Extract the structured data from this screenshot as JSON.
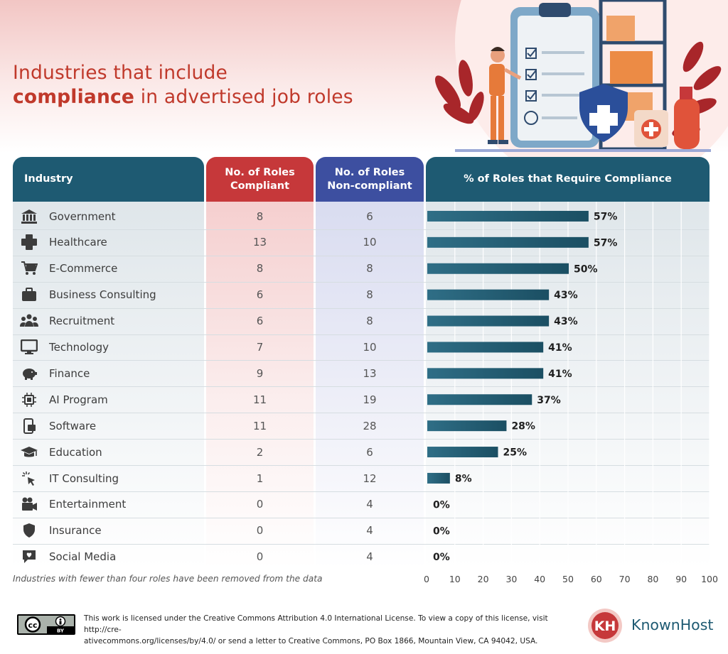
{
  "title": {
    "line1": "Industries that include",
    "line2_bold": "compliance",
    "line2_rest": " in advertised job roles"
  },
  "headers": {
    "industry": "Industry",
    "compliant_line1": "No. of Roles",
    "compliant_line2": "Compliant",
    "noncompliant_line1": "No. of Roles",
    "noncompliant_line2": "Non-compliant",
    "percent": "% of Roles that Require Compliance"
  },
  "colors": {
    "teal": "#1e5a72",
    "red": "#c6383a",
    "indigo": "#3d4fa0",
    "bar_start": "#2f6e86",
    "bar_end": "#1b4f63"
  },
  "rows": [
    {
      "industry": "Government",
      "icon": "bank-icon",
      "compliant": "8",
      "noncompliant": "6"
    },
    {
      "industry": "Healthcare",
      "icon": "medical-cross-icon",
      "compliant": "13",
      "noncompliant": "10"
    },
    {
      "industry": "E-Commerce",
      "icon": "shopping-cart-icon",
      "compliant": "8",
      "noncompliant": "8"
    },
    {
      "industry": "Business Consulting",
      "icon": "briefcase-icon",
      "compliant": "6",
      "noncompliant": "8"
    },
    {
      "industry": "Recruitment",
      "icon": "people-icon",
      "compliant": "6",
      "noncompliant": "8"
    },
    {
      "industry": "Technology",
      "icon": "monitor-icon",
      "compliant": "7",
      "noncompliant": "10"
    },
    {
      "industry": "Finance",
      "icon": "piggy-bank-icon",
      "compliant": "9",
      "noncompliant": "13"
    },
    {
      "industry": "AI Program",
      "icon": "chip-icon",
      "compliant": "11",
      "noncompliant": "19"
    },
    {
      "industry": "Software",
      "icon": "phone-app-icon",
      "compliant": "11",
      "noncompliant": "28"
    },
    {
      "industry": "Education",
      "icon": "graduation-cap-icon",
      "compliant": "2",
      "noncompliant": "6"
    },
    {
      "industry": "IT Consulting",
      "icon": "cursor-click-icon",
      "compliant": "1",
      "noncompliant": "12"
    },
    {
      "industry": "Entertainment",
      "icon": "video-camera-icon",
      "compliant": "0",
      "noncompliant": "4"
    },
    {
      "industry": "Insurance",
      "icon": "shield-icon",
      "compliant": "0",
      "noncompliant": "4"
    },
    {
      "industry": "Social Media",
      "icon": "chat-heart-icon",
      "compliant": "0",
      "noncompliant": "4"
    }
  ],
  "chart_data": {
    "type": "bar",
    "orientation": "horizontal",
    "categories": [
      "Government",
      "Healthcare",
      "E-Commerce",
      "Business Consulting",
      "Recruitment",
      "Technology",
      "Finance",
      "AI Program",
      "Software",
      "Education",
      "IT Consulting",
      "Entertainment",
      "Insurance",
      "Social Media"
    ],
    "values": [
      57,
      57,
      50,
      43,
      43,
      41,
      41,
      37,
      28,
      25,
      8,
      0,
      0,
      0
    ],
    "data_labels": [
      "57%",
      "57%",
      "50%",
      "43%",
      "43%",
      "41%",
      "41%",
      "37%",
      "28%",
      "25%",
      "8%",
      "0%",
      "0%",
      "0%"
    ],
    "title": "% of Roles that Require Compliance",
    "xlim": [
      0,
      100
    ],
    "xticks": [
      "0",
      "10",
      "20",
      "30",
      "40",
      "50",
      "60",
      "70",
      "80",
      "90",
      "100"
    ],
    "grid": true
  },
  "footnote": "Industries with fewer than four roles have been removed from the data",
  "license": {
    "badge_icon": "cc-by-icon",
    "badge_cc": "cc",
    "badge_by": "BY",
    "text_line1": "This work is licensed under the Creative Commons Attribution 4.0 International License. To view a copy of this license, visit http://cre-",
    "text_line2": "ativecommons.org/licenses/by/4.0/ or send a letter to Creative Commons, PO Box 1866, Mountain View, CA 94042, USA."
  },
  "brand": {
    "logo_icon": "knownhost-logo-icon",
    "logo_letters": "KH",
    "name": "KnownHost"
  }
}
